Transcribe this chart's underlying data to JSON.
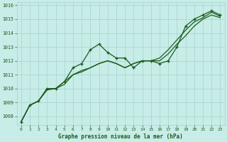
{
  "title": "Graphe pression niveau de la mer (hPa)",
  "background_color": "#c8ece8",
  "grid_color": "#a8d8d0",
  "line_color": "#1a5c1a",
  "xlim": [
    -0.5,
    23.5
  ],
  "ylim": [
    1007.4,
    1016.2
  ],
  "yticks": [
    1008,
    1009,
    1010,
    1011,
    1012,
    1013,
    1014,
    1015,
    1016
  ],
  "xticks": [
    0,
    1,
    2,
    3,
    4,
    5,
    6,
    7,
    8,
    9,
    10,
    11,
    12,
    13,
    14,
    15,
    16,
    17,
    18,
    19,
    20,
    21,
    22,
    23
  ],
  "series1": [
    1007.6,
    1008.8,
    1009.1,
    1010.0,
    1010.0,
    1010.5,
    1011.5,
    1011.8,
    1012.8,
    1013.2,
    1012.6,
    1012.2,
    1012.2,
    1011.5,
    1012.0,
    1012.0,
    1011.8,
    1012.0,
    1013.0,
    1014.5,
    1015.0,
    1015.3,
    1015.6,
    1015.3
  ],
  "series2": [
    1007.6,
    1008.8,
    1009.1,
    1010.0,
    1010.0,
    1010.5,
    1011.0,
    1011.3,
    1011.5,
    1011.8,
    1012.0,
    1011.8,
    1011.5,
    1011.8,
    1012.0,
    1012.0,
    1012.2,
    1012.8,
    1013.5,
    1014.2,
    1014.8,
    1015.1,
    1015.5,
    1015.2
  ],
  "series3": [
    1007.6,
    1008.8,
    1009.1,
    1009.9,
    1010.0,
    1010.3,
    1011.0,
    1011.2,
    1011.5,
    1011.8,
    1012.0,
    1011.8,
    1011.5,
    1011.8,
    1012.0,
    1012.0,
    1012.0,
    1012.5,
    1013.2,
    1013.8,
    1014.5,
    1015.0,
    1015.3,
    1015.1
  ]
}
